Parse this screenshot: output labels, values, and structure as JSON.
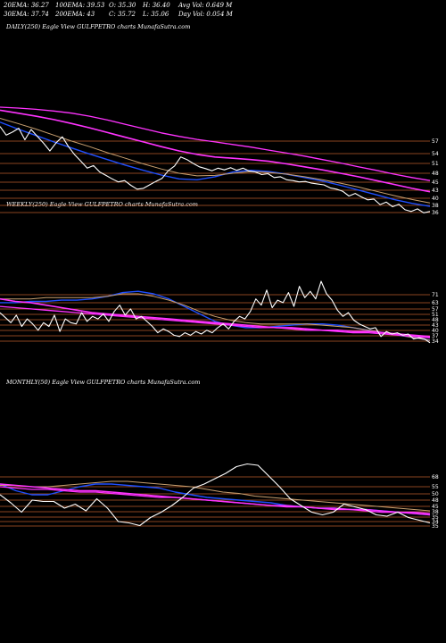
{
  "header": {
    "ema20": "20EMA: 36.27",
    "ema30": "30EMA: 37.74",
    "ema100": "100EMA: 39.53",
    "ema200": "200EMA: 43",
    "open": "O: 35.30",
    "close": "C: 35.72",
    "high": "H: 36.40",
    "low": "L: 35.06",
    "avg_vol": "Avg Vol: 0.649 M",
    "day_vol": "Day Vol: 0.054  M"
  },
  "colors": {
    "price": "#ffffff",
    "ema_short": "#1f4fff",
    "ema_long": "#ff33ff",
    "ema_mid": "#c8a070",
    "grid": "#b85c2a"
  },
  "chart_data": [
    {
      "type": "line",
      "title": "DAILY(250) Eagle  View  GULFPETRO charts MunafaSutra.com",
      "ticks": [
        "57",
        "54",
        "51",
        "48",
        "45",
        "43",
        "40",
        "38",
        "36"
      ],
      "ylim": [
        34,
        60
      ],
      "price": [
        55.5,
        53.5,
        54.2,
        55.1,
        52.4,
        54.8,
        53.2,
        51.6,
        49.8,
        51.7,
        53.1,
        50.8,
        48.9,
        47.4,
        45.8,
        46.4,
        44.9,
        44.1,
        43.3,
        42.6,
        42.9,
        41.8,
        40.9,
        41.1,
        41.9,
        42.7,
        43.4,
        45.2,
        46.3,
        48.4,
        47.8,
        46.9,
        46.1,
        45.7,
        45.2,
        45.8,
        45.4,
        45.9,
        45.3,
        45.8,
        45.1,
        44.9,
        44.3,
        44.5,
        43.6,
        43.8,
        43.1,
        42.9,
        42.6,
        42.7,
        42.3,
        42.1,
        41.9,
        41.2,
        40.9,
        40.4,
        39.3,
        39.9,
        39.1,
        38.4,
        38.6,
        37.3,
        37.9,
        36.8,
        37.4,
        36.1,
        35.7,
        36.3,
        35.4,
        35.7
      ],
      "series": [
        {
          "values": [
            56.5,
            54.9,
            53.4,
            51.9,
            50.5,
            49.1,
            47.8,
            46.5,
            45.3,
            44.2,
            43.3,
            43.1,
            43.8,
            44.9,
            45.3,
            45.0,
            44.4,
            43.6,
            42.8,
            41.8,
            40.7,
            39.6,
            38.5,
            37.6,
            36.9
          ]
        },
        {
          "values": [
            57.4,
            56.2,
            54.9,
            53.5,
            52.1,
            50.8,
            49.4,
            48.1,
            46.8,
            45.6,
            44.6,
            44.0,
            44.1,
            44.6,
            45.0,
            44.8,
            44.4,
            43.8,
            43.1,
            42.3,
            41.4,
            40.4,
            39.4,
            38.5,
            37.7
          ]
        },
        {
          "values": [
            59.3,
            58.6,
            57.9,
            57.1,
            56.2,
            55.2,
            54.1,
            53.0,
            51.9,
            50.8,
            49.8,
            49.0,
            48.4,
            48.1,
            47.8,
            47.4,
            46.8,
            46.1,
            45.4,
            44.6,
            43.8,
            42.9,
            42.0,
            41.1,
            40.3
          ]
        },
        {
          "values": [
            60.0,
            59.8,
            59.5,
            59.1,
            58.6,
            57.9,
            57.0,
            56.0,
            55.0,
            54.0,
            53.2,
            52.5,
            51.9,
            51.3,
            50.7,
            50.0,
            49.3,
            48.6,
            47.8,
            47.0,
            46.1,
            45.3,
            44.4,
            43.6,
            42.9
          ]
        }
      ]
    },
    {
      "type": "line",
      "title": "WEEKLY(250) Eagle  View  GULFPETRO charts MunafaSutra.com",
      "ticks": [
        "71",
        "63",
        "57",
        "51",
        "48",
        "43",
        "40",
        "37",
        "34"
      ],
      "ylim": [
        28,
        80
      ],
      "price": [
        55,
        51,
        47,
        53,
        44,
        50,
        46,
        41,
        47,
        44,
        53,
        40,
        50,
        47,
        46,
        55,
        48,
        52,
        50,
        54,
        48,
        56,
        61,
        53,
        58,
        50,
        52,
        48,
        44,
        39,
        42,
        40,
        37,
        36,
        39,
        37,
        40,
        38,
        41,
        39,
        43,
        46,
        42,
        48,
        52,
        50,
        56,
        66,
        61,
        73,
        59,
        65,
        63,
        71,
        60,
        76,
        67,
        72,
        66,
        80,
        70,
        65,
        57,
        52,
        55,
        49,
        46,
        44,
        42,
        43,
        36,
        40,
        38,
        39,
        37,
        38,
        34,
        35,
        34,
        31
      ],
      "series": [
        {
          "values": [
            63,
            63,
            64,
            64,
            65,
            65,
            66,
            68,
            71,
            72,
            70,
            66,
            60,
            54,
            48,
            45,
            43,
            43,
            44,
            45,
            46,
            46,
            45,
            43,
            41,
            39,
            37,
            35,
            33
          ]
        },
        {
          "values": [
            66,
            66,
            66,
            67,
            67,
            67,
            67,
            68,
            70,
            70,
            68,
            65,
            61,
            56,
            52,
            49,
            47,
            46,
            46,
            46,
            46,
            45,
            44,
            43,
            41,
            39,
            37,
            35,
            33
          ]
        },
        {
          "values": [
            66,
            64,
            63,
            61,
            59,
            57,
            55,
            54,
            53,
            52,
            51,
            50,
            49,
            48,
            47,
            46,
            45,
            44,
            43,
            43,
            42,
            41,
            41,
            40,
            40,
            39,
            38,
            37,
            36
          ]
        },
        {
          "values": [
            60,
            59,
            58,
            57,
            56,
            55,
            54,
            53,
            52,
            51,
            50,
            49,
            48,
            47,
            46,
            45,
            44,
            43,
            43,
            42,
            41,
            41,
            40,
            39,
            39,
            38,
            37,
            36,
            35
          ]
        }
      ]
    },
    {
      "type": "line",
      "title": "MONTHLY(50) Eagle  View  GULFPETRO charts MunafaSutra.com",
      "ticks": [
        "68",
        "55",
        "50",
        "48",
        "45",
        "38",
        "35",
        "34",
        "35"
      ],
      "ylim": [
        26,
        76
      ],
      "price": [
        50,
        44,
        37,
        46,
        45,
        45,
        40,
        43,
        38,
        47,
        40,
        30,
        29,
        27,
        33,
        37,
        42,
        48,
        55,
        58,
        62,
        66,
        71,
        73,
        72,
        64,
        56,
        47,
        42,
        37,
        35,
        37,
        43,
        41,
        39,
        35,
        34,
        37,
        33,
        31,
        29
      ],
      "series": [
        {
          "values": [
            58,
            53,
            50,
            50,
            53,
            56,
            58,
            58,
            57,
            56,
            55,
            52,
            50,
            48,
            47,
            46,
            45,
            44,
            42,
            41,
            40,
            40,
            39,
            39,
            38,
            37,
            36,
            35
          ]
        },
        {
          "values": [
            57,
            57,
            56,
            56,
            57,
            58,
            59,
            60,
            60,
            59,
            58,
            57,
            56,
            54,
            52,
            51,
            49,
            48,
            47,
            46,
            45,
            44,
            43,
            42,
            41,
            40,
            39,
            38
          ]
        },
        {
          "values": [
            58,
            57,
            56,
            55,
            54,
            53,
            53,
            52,
            51,
            50,
            49,
            48,
            47,
            46,
            45,
            44,
            43,
            42,
            41,
            41,
            40,
            39,
            39,
            38,
            37,
            37,
            36,
            35
          ]
        },
        {
          "values": [
            56,
            55,
            54,
            54,
            53,
            52,
            52,
            51,
            50,
            49,
            48,
            48,
            47,
            46,
            45,
            44,
            43,
            42,
            42,
            41,
            40,
            40,
            39,
            39,
            38,
            37,
            37,
            36
          ]
        }
      ]
    }
  ]
}
